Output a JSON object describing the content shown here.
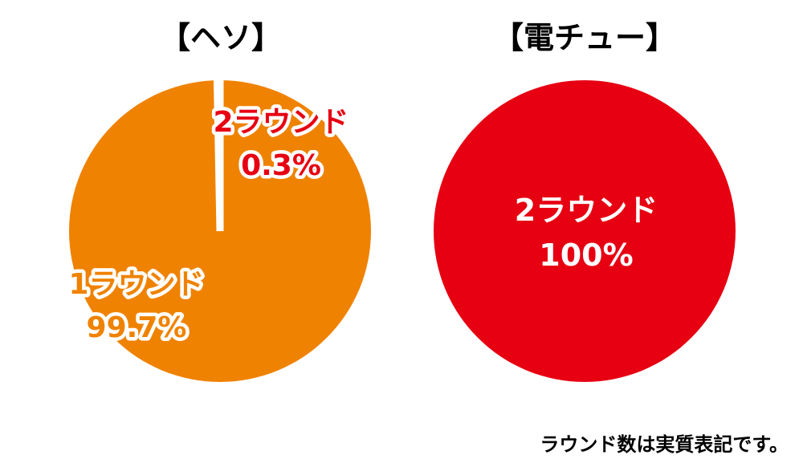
{
  "chart_data": [
    {
      "type": "pie",
      "title": "【ヘソ】",
      "series": [
        {
          "name": "1ラウンド",
          "value": 99.7,
          "label": "99.7%",
          "color": "#ef8200",
          "label_color": "#ef8200"
        },
        {
          "name": "2ラウンド",
          "value": 0.3,
          "label": "0.3%",
          "color": "#ffffff",
          "label_color": "#e60012"
        }
      ]
    },
    {
      "type": "pie",
      "title": "【電チュー】",
      "series": [
        {
          "name": "2ラウンド",
          "value": 100,
          "label": "100%",
          "color": "#e60012",
          "label_color": "#ffffff"
        }
      ]
    }
  ],
  "footnote": "ラウンド数は実質表記です。",
  "colors": {
    "orange": "#ef8200",
    "red": "#e60012",
    "white": "#ffffff"
  }
}
